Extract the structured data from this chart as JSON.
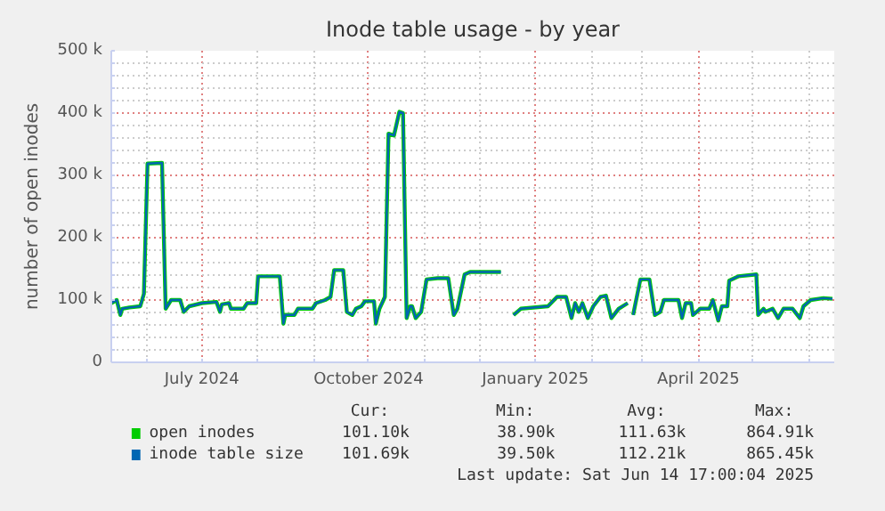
{
  "chart_data": {
    "type": "line",
    "title": "Inode table usage - by year",
    "ylabel": "number of open inodes",
    "x": [
      "2024-05-12",
      "2024-05-15",
      "2024-05-17",
      "2024-05-18",
      "2024-05-22",
      "2024-05-28",
      "2024-05-30",
      "2024-06-01",
      "2024-06-09",
      "2024-06-11",
      "2024-06-14",
      "2024-06-19",
      "2024-06-21",
      "2024-06-24",
      "2024-07-01",
      "2024-07-09",
      "2024-07-11",
      "2024-07-12",
      "2024-07-16",
      "2024-07-17",
      "2024-07-24",
      "2024-07-26",
      "2024-07-31",
      "2024-08-01",
      "2024-08-13",
      "2024-08-15",
      "2024-08-16",
      "2024-08-21",
      "2024-08-23",
      "2024-08-31",
      "2024-09-02",
      "2024-09-07",
      "2024-09-10",
      "2024-09-12",
      "2024-09-17",
      "2024-09-19",
      "2024-09-22",
      "2024-09-24",
      "2024-09-27",
      "2024-09-29",
      "2024-10-04",
      "2024-10-05",
      "2024-10-07",
      "2024-10-10",
      "2024-10-12",
      "2024-10-15",
      "2024-10-18",
      "2024-10-20",
      "2024-10-22",
      "2024-10-24",
      "2024-10-25",
      "2024-10-27",
      "2024-10-30",
      "2024-11-02",
      "2024-11-08",
      "2024-11-14",
      "2024-11-17",
      "2024-11-19",
      "2024-11-23",
      "2024-11-26",
      "2024-12-13",
      "2024-12-17",
      "2024-12-20",
      "2024-12-24",
      "2025-01-08",
      "2025-01-13",
      "2025-01-18",
      "2025-01-21",
      "2025-01-23",
      "2025-01-25",
      "2025-01-27",
      "2025-01-30",
      "2025-02-02",
      "2025-02-06",
      "2025-02-09",
      "2025-02-12",
      "2025-02-16",
      "2025-02-21",
      "2025-02-23",
      "2025-02-24",
      "2025-02-28",
      "2025-03-05",
      "2025-03-08",
      "2025-03-11",
      "2025-03-13",
      "2025-03-21",
      "2025-03-23",
      "2025-03-25",
      "2025-03-28",
      "2025-03-29",
      "2025-04-02",
      "2025-04-07",
      "2025-04-09",
      "2025-04-12",
      "2025-04-14",
      "2025-04-17",
      "2025-04-18",
      "2025-04-23",
      "2025-05-03",
      "2025-05-04",
      "2025-05-07",
      "2025-05-08",
      "2025-05-12",
      "2025-05-15",
      "2025-05-18",
      "2025-05-23",
      "2025-05-27",
      "2025-05-29",
      "2025-06-02",
      "2025-06-09",
      "2025-06-14"
    ],
    "series": [
      {
        "name": "open inodes",
        "color": "#00cc00",
        "values": [
          95000,
          100000,
          76000,
          86000,
          88000,
          90000,
          110000,
          319000,
          320000,
          86000,
          100000,
          100000,
          81000,
          90000,
          95000,
          97000,
          81000,
          93000,
          95000,
          86000,
          86000,
          95000,
          95000,
          138000,
          138000,
          62000,
          76000,
          76000,
          86000,
          86000,
          95000,
          100000,
          105000,
          148000,
          148000,
          81000,
          76000,
          86000,
          90000,
          98000,
          98000,
          62000,
          86000,
          105000,
          367000,
          364000,
          402000,
          400000,
          71000,
          90000,
          90000,
          71000,
          81000,
          133000,
          135000,
          135000,
          76000,
          86000,
          141000,
          145000,
          145000,
          null,
          76000,
          86000,
          90000,
          105000,
          105000,
          71000,
          95000,
          81000,
          95000,
          71000,
          90000,
          105000,
          107000,
          71000,
          86000,
          95000,
          null,
          76000,
          133000,
          133000,
          76000,
          81000,
          100000,
          100000,
          71000,
          95000,
          95000,
          76000,
          86000,
          86000,
          100000,
          67000,
          90000,
          90000,
          131000,
          138000,
          141000,
          76000,
          86000,
          81000,
          86000,
          71000,
          86000,
          86000,
          71000,
          90000,
          100000,
          103000,
          102000
        ]
      },
      {
        "name": "inode table size",
        "color": "#0066b3",
        "values": [
          95000,
          100000,
          76000,
          86000,
          88000,
          90000,
          110000,
          319000,
          320000,
          86000,
          100000,
          100000,
          81000,
          90000,
          95000,
          97000,
          81000,
          93000,
          95000,
          86000,
          86000,
          95000,
          95000,
          138000,
          138000,
          62000,
          76000,
          76000,
          86000,
          86000,
          95000,
          100000,
          105000,
          148000,
          148000,
          81000,
          76000,
          86000,
          90000,
          98000,
          98000,
          62000,
          86000,
          105000,
          367000,
          364000,
          402000,
          400000,
          71000,
          90000,
          90000,
          71000,
          81000,
          133000,
          135000,
          135000,
          76000,
          86000,
          141000,
          145000,
          145000,
          null,
          76000,
          86000,
          90000,
          105000,
          105000,
          71000,
          95000,
          81000,
          95000,
          71000,
          90000,
          105000,
          107000,
          71000,
          86000,
          95000,
          null,
          76000,
          133000,
          133000,
          76000,
          81000,
          100000,
          100000,
          71000,
          95000,
          95000,
          76000,
          86000,
          86000,
          100000,
          67000,
          90000,
          90000,
          131000,
          138000,
          141000,
          76000,
          86000,
          81000,
          86000,
          71000,
          86000,
          86000,
          71000,
          90000,
          100000,
          103000,
          102000
        ]
      }
    ],
    "xlim": [
      "2024-05-12",
      "2025-06-15"
    ],
    "xticks": [
      {
        "value": "2024-06-01",
        "label": null
      },
      {
        "value": "2024-07-01",
        "label": "July 2024"
      },
      {
        "value": "2024-08-01",
        "label": null
      },
      {
        "value": "2024-09-01",
        "label": null
      },
      {
        "value": "2024-10-01",
        "label": "October 2024"
      },
      {
        "value": "2024-11-01",
        "label": null
      },
      {
        "value": "2024-12-01",
        "label": null
      },
      {
        "value": "2025-01-01",
        "label": "January 2025"
      },
      {
        "value": "2025-02-01",
        "label": null
      },
      {
        "value": "2025-03-01",
        "label": null
      },
      {
        "value": "2025-04-01",
        "label": "April 2025"
      },
      {
        "value": "2025-05-01",
        "label": null
      },
      {
        "value": "2025-06-01",
        "label": null
      }
    ],
    "ylim": [
      0,
      500000
    ],
    "yticks": [
      0,
      {
        "value": 20000,
        "label": null
      },
      {
        "value": 40000,
        "label": null
      },
      {
        "value": 60000,
        "label": null
      },
      {
        "value": 80000,
        "label": null
      },
      {
        "value": 100000,
        "label": "100 k"
      },
      {
        "value": 120000,
        "label": null
      },
      {
        "value": 140000,
        "label": null
      },
      {
        "value": 160000,
        "label": null
      },
      {
        "value": 180000,
        "label": null
      },
      {
        "value": 200000,
        "label": "200 k"
      },
      {
        "value": 220000,
        "label": null
      },
      {
        "value": 240000,
        "label": null
      },
      {
        "value": 260000,
        "label": null
      },
      {
        "value": 280000,
        "label": null
      },
      {
        "value": 300000,
        "label": "300 k"
      },
      {
        "value": 320000,
        "label": null
      },
      {
        "value": 340000,
        "label": null
      },
      {
        "value": 360000,
        "label": null
      },
      {
        "value": 380000,
        "label": null
      },
      {
        "value": 400000,
        "label": "400 k"
      },
      {
        "value": 420000,
        "label": null
      },
      {
        "value": 440000,
        "label": null
      },
      {
        "value": 460000,
        "label": null
      },
      {
        "value": 480000,
        "label": null
      },
      {
        "value": 500000,
        "label": "500 k"
      }
    ],
    "grid": true,
    "legend": "bottom",
    "marker": "none",
    "line_style": "solid",
    "annotations": [
      "Cur:",
      "Min:",
      "Avg:",
      "Max:",
      "101.10k",
      "38.90k",
      "111.63k",
      "864.91k",
      "101.69k",
      "39.50k",
      "112.21k",
      "865.45k",
      "Last update: Sat Jun 14 17:00:04 2025"
    ]
  }
}
